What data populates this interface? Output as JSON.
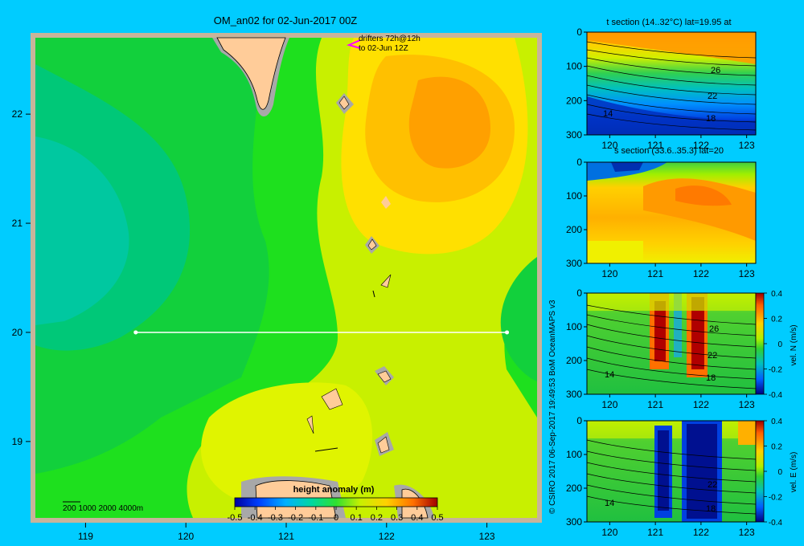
{
  "main_map": {
    "title": "OM_an02 for 02-Jun-2017 00Z",
    "drifter_line1": "drifters 72h@12h",
    "drifter_line2": "to 02-Jun 12Z",
    "x_ticks": [
      "119",
      "120",
      "121",
      "122",
      "123"
    ],
    "y_ticks": [
      "22",
      "21",
      "20",
      "19"
    ],
    "bathy_legend": "200  1000  2000  4000m",
    "colorbar_label": "height anomaly  (m)",
    "colorbar_ticks": [
      "-0.5",
      "-0.4",
      "-0.3",
      "-0.2",
      "-0.1",
      "0",
      "0.1",
      "0.2",
      "0.3",
      "0.4",
      "0.5"
    ],
    "section_lat": 20,
    "section_lon_range": [
      119.5,
      123.2
    ]
  },
  "credit": "© CSIRO 2017   06-Sep-2017 19:49:53 BoM OceanMAPS v3",
  "panels": [
    {
      "title": "t section (14..32°C) lat=19.95 at",
      "y_ticks": [
        "0",
        "100",
        "200",
        "300"
      ],
      "x_ticks": [
        "120",
        "121",
        "122",
        "123"
      ],
      "contour_labels": [
        "26",
        "22",
        "18",
        "14"
      ]
    },
    {
      "title": "s section (33.6..35.3) lat=20",
      "y_ticks": [
        "0",
        "100",
        "200",
        "300"
      ],
      "x_ticks": [
        "120",
        "121",
        "122",
        "123"
      ]
    },
    {
      "title": "",
      "y_ticks": [
        "0",
        "100",
        "200",
        "300"
      ],
      "x_ticks": [
        "120",
        "121",
        "122",
        "123"
      ],
      "contour_labels": [
        "26",
        "22",
        "18",
        "14"
      ],
      "cbar_label": "vel. N  (m/s)",
      "cbar_ticks": [
        "0.4",
        "0.2",
        "0",
        "-0.2",
        "-0.4"
      ]
    },
    {
      "title": "",
      "y_ticks": [
        "0",
        "100",
        "200",
        "300"
      ],
      "x_ticks": [
        "120",
        "121",
        "122",
        "123"
      ],
      "contour_labels": [
        "22",
        "18",
        "14"
      ],
      "cbar_label": "vel. E  (m/s)",
      "cbar_ticks": [
        "0.4",
        "0.2",
        "0",
        "-0.2",
        "-0.4"
      ]
    }
  ],
  "chart_data": [
    {
      "type": "heatmap",
      "title": "OM_an02 for 02-Jun-2017 00Z",
      "variable": "height anomaly (m)",
      "xlim": [
        118.5,
        123.5
      ],
      "ylim": [
        18.3,
        22.7
      ],
      "value_range": [
        -0.5,
        0.5
      ],
      "section_line": {
        "lat": 20,
        "lon": [
          119.5,
          123.2
        ]
      }
    },
    {
      "type": "heatmap",
      "title": "t section (14..32°C) lat=19.95 at",
      "x_range": [
        119.5,
        123.2
      ],
      "depth_range": [
        0,
        300
      ]
    },
    {
      "type": "heatmap",
      "title": "s section (33.6..35.3) lat=20",
      "x_range": [
        119.5,
        123.2
      ],
      "depth_range": [
        0,
        300
      ]
    },
    {
      "type": "heatmap",
      "variable": "vel. N (m/s)",
      "x_range": [
        119.5,
        123.2
      ],
      "depth_range": [
        0,
        300
      ],
      "value_range": [
        -0.4,
        0.4
      ]
    },
    {
      "type": "heatmap",
      "variable": "vel. E (m/s)",
      "x_range": [
        119.5,
        123.2
      ],
      "depth_range": [
        0,
        300
      ],
      "value_range": [
        -0.4,
        0.4
      ]
    }
  ]
}
